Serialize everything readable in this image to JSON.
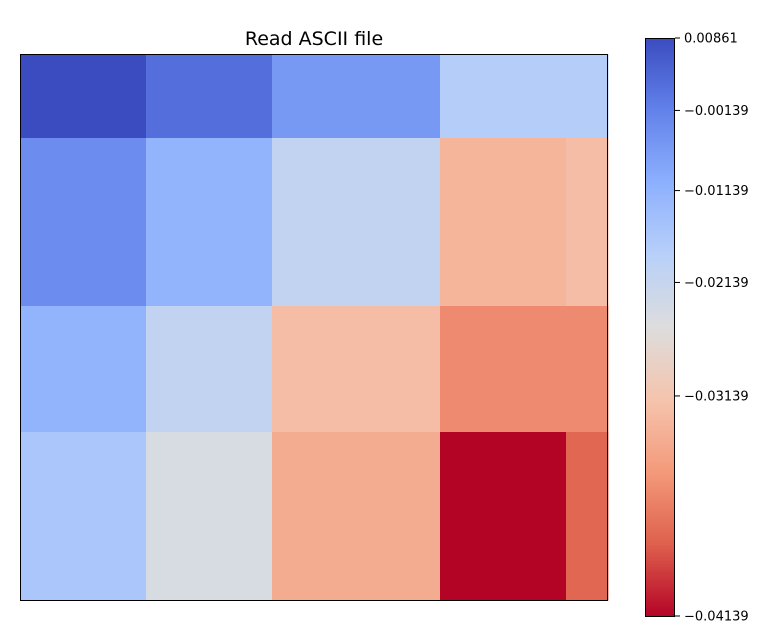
{
  "chart_data": {
    "type": "heatmap",
    "title": "Read ASCII file",
    "xlabel": "",
    "ylabel": "",
    "x_edges": [
      0,
      3,
      6,
      10,
      13,
      14
    ],
    "y_edges": [
      0,
      2,
      6,
      9,
      13
    ],
    "values": [
      [
        0.00861,
        0.002,
        -0.006,
        -0.018,
        -0.018
      ],
      [
        -0.0035,
        -0.0115,
        -0.0205,
        -0.0335,
        -0.0325
      ],
      [
        -0.0115,
        -0.0205,
        -0.0325,
        -0.0375,
        -0.0375
      ],
      [
        -0.016,
        -0.0245,
        -0.0345,
        -0.04139,
        -0.0395
      ]
    ],
    "colormap": "coolwarm_r",
    "colorbar": {
      "vmin": -0.04139,
      "vmax": 0.00861,
      "ticks": [
        0.00861,
        -0.00139,
        -0.01139,
        -0.02139,
        -0.03139,
        -0.04139
      ],
      "tick_labels": [
        "0.00861",
        "−0.00139",
        "−0.01139",
        "−0.02139",
        "−0.03139",
        "−0.04139"
      ],
      "scale": "power-norm"
    },
    "show_axis_ticks": false,
    "grid": false
  }
}
